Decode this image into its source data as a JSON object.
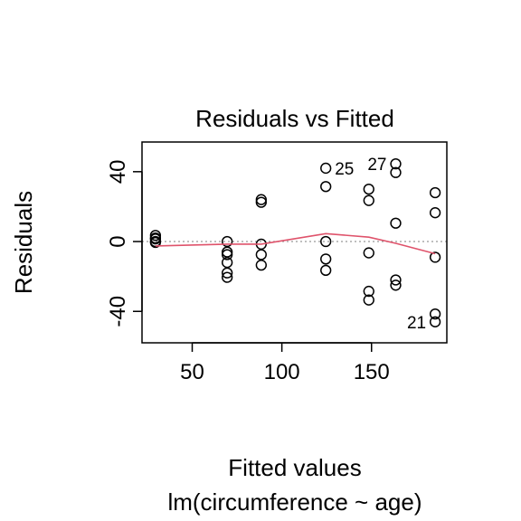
{
  "chart_data": {
    "type": "scatter",
    "title": "Residuals vs Fitted",
    "xlabel": "Fitted values",
    "subtitle": "lm(circumference ~ age)",
    "ylabel": "Residuals",
    "xlim": [
      22,
      192
    ],
    "ylim": [
      -58,
      57
    ],
    "x_ticks": [
      50,
      100,
      150
    ],
    "x_tick_labels": [
      "50",
      "100",
      "150"
    ],
    "y_ticks": [
      -40,
      0,
      40
    ],
    "y_tick_labels": [
      "-40",
      "0",
      "40"
    ],
    "points": [
      {
        "x": 29.5,
        "y": 3.5
      },
      {
        "x": 29.5,
        "y": 2.0
      },
      {
        "x": 29.5,
        "y": 1.5
      },
      {
        "x": 29.5,
        "y": 0.0
      },
      {
        "x": 29.5,
        "y": -0.5
      },
      {
        "x": 69.5,
        "y": 0.0
      },
      {
        "x": 69.5,
        "y": -6.0
      },
      {
        "x": 69.5,
        "y": -7.5
      },
      {
        "x": 69.5,
        "y": -12.0
      },
      {
        "x": 69.5,
        "y": -18.0
      },
      {
        "x": 69.5,
        "y": -20.5
      },
      {
        "x": 88.5,
        "y": 24.0
      },
      {
        "x": 88.5,
        "y": 22.5
      },
      {
        "x": 88.5,
        "y": -1.5
      },
      {
        "x": 88.5,
        "y": -7.5
      },
      {
        "x": 88.5,
        "y": -13.5
      },
      {
        "x": 124.5,
        "y": 42.0
      },
      {
        "x": 124.5,
        "y": 31.5
      },
      {
        "x": 124.5,
        "y": 0.0
      },
      {
        "x": 124.5,
        "y": -10.0
      },
      {
        "x": 124.5,
        "y": -16.5
      },
      {
        "x": 148.5,
        "y": 30.0
      },
      {
        "x": 148.5,
        "y": 23.5
      },
      {
        "x": 148.5,
        "y": -6.5
      },
      {
        "x": 148.5,
        "y": -28.5
      },
      {
        "x": 148.5,
        "y": -33.5
      },
      {
        "x": 163.5,
        "y": 44.5
      },
      {
        "x": 163.5,
        "y": 39.5
      },
      {
        "x": 163.5,
        "y": 10.5
      },
      {
        "x": 163.5,
        "y": -22.0
      },
      {
        "x": 163.5,
        "y": -25.0
      },
      {
        "x": 185.5,
        "y": 28.0
      },
      {
        "x": 185.5,
        "y": 16.5
      },
      {
        "x": 185.5,
        "y": -9.0
      },
      {
        "x": 185.5,
        "y": -41.5
      },
      {
        "x": 185.5,
        "y": -46.0
      }
    ],
    "point_labels": [
      {
        "text": "25",
        "x": 124.5,
        "y": 42.0,
        "side": "right"
      },
      {
        "text": "27",
        "x": 163.5,
        "y": 44.5,
        "side": "left"
      },
      {
        "text": "21",
        "x": 185.5,
        "y": -46.0,
        "side": "left"
      }
    ],
    "smooth_line": {
      "color": "#DF536B",
      "x": [
        29.5,
        69.5,
        88.5,
        124.5,
        148.5,
        163.5,
        185.5
      ],
      "y": [
        -2.5,
        -1.5,
        -1.5,
        4.5,
        2.5,
        -1.0,
        -7.0
      ]
    },
    "reference_line": {
      "y": 0,
      "color": "#999999",
      "style": "dotted"
    },
    "grid": false,
    "legend": "none"
  }
}
